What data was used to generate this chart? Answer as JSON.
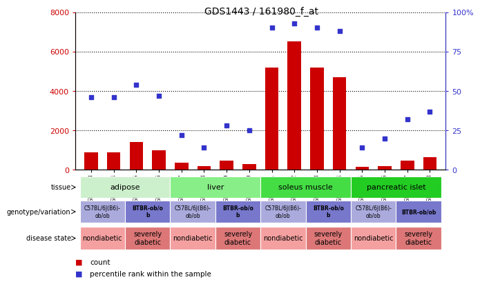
{
  "title": "GDS1443 / 161980_f_at",
  "samples": [
    "GSM63273",
    "GSM63274",
    "GSM63275",
    "GSM63276",
    "GSM63277",
    "GSM63278",
    "GSM63279",
    "GSM63280",
    "GSM63281",
    "GSM63282",
    "GSM63283",
    "GSM63284",
    "GSM63285",
    "GSM63286",
    "GSM63287",
    "GSM63288"
  ],
  "counts": [
    900,
    900,
    1400,
    1000,
    350,
    200,
    450,
    300,
    5200,
    6500,
    5200,
    4700,
    150,
    200,
    450,
    650
  ],
  "percentiles": [
    46,
    46,
    54,
    47,
    22,
    14,
    28,
    25,
    90,
    93,
    90,
    88,
    14,
    20,
    32,
    37
  ],
  "ylim_left": [
    0,
    8000
  ],
  "ylim_right": [
    0,
    100
  ],
  "yticks_left": [
    0,
    2000,
    4000,
    6000,
    8000
  ],
  "yticks_right": [
    0,
    25,
    50,
    75,
    100
  ],
  "bar_color": "#cc0000",
  "scatter_color": "#3333cc",
  "tissue_groups": [
    {
      "label": "adipose",
      "start": 0,
      "end": 4,
      "color": "#ccf0cc"
    },
    {
      "label": "liver",
      "start": 4,
      "end": 8,
      "color": "#88ee88"
    },
    {
      "label": "soleus muscle",
      "start": 8,
      "end": 12,
      "color": "#44dd44"
    },
    {
      "label": "pancreatic islet",
      "start": 12,
      "end": 16,
      "color": "#22cc22"
    }
  ],
  "genotype_groups": [
    {
      "label": "C57BL/6J(B6)-\nob/ob",
      "start": 0,
      "end": 2,
      "color": "#aaaadd"
    },
    {
      "label": "BTBR-ob/o\nb",
      "start": 2,
      "end": 4,
      "color": "#7777cc"
    },
    {
      "label": "C57BL/6J(B6)-\nob/ob",
      "start": 4,
      "end": 6,
      "color": "#aaaadd"
    },
    {
      "label": "BTBR-ob/o\nb",
      "start": 6,
      "end": 8,
      "color": "#7777cc"
    },
    {
      "label": "C57BL/6J(B6)-\nob/ob",
      "start": 8,
      "end": 10,
      "color": "#aaaadd"
    },
    {
      "label": "BTBR-ob/o\nb",
      "start": 10,
      "end": 12,
      "color": "#7777cc"
    },
    {
      "label": "C57BL/6J(B6)-\nob/ob",
      "start": 12,
      "end": 14,
      "color": "#aaaadd"
    },
    {
      "label": "BTBR-ob/ob",
      "start": 14,
      "end": 16,
      "color": "#7777cc"
    }
  ],
  "disease_groups": [
    {
      "label": "nondiabetic",
      "start": 0,
      "end": 2,
      "color": "#f5a0a0"
    },
    {
      "label": "severely\ndiabetic",
      "start": 2,
      "end": 4,
      "color": "#dd7777"
    },
    {
      "label": "nondiabetic",
      "start": 4,
      "end": 6,
      "color": "#f5a0a0"
    },
    {
      "label": "severely\ndiabetic",
      "start": 6,
      "end": 8,
      "color": "#dd7777"
    },
    {
      "label": "nondiabetic",
      "start": 8,
      "end": 10,
      "color": "#f5a0a0"
    },
    {
      "label": "severely\ndiabetic",
      "start": 10,
      "end": 12,
      "color": "#dd7777"
    },
    {
      "label": "nondiabetic",
      "start": 12,
      "end": 14,
      "color": "#f5a0a0"
    },
    {
      "label": "severely\ndiabetic",
      "start": 14,
      "end": 16,
      "color": "#dd7777"
    }
  ],
  "bg_color": "#ffffff",
  "row_labels": [
    "tissue",
    "genotype/variation",
    "disease state"
  ],
  "legend_items": [
    {
      "color": "#cc0000",
      "label": "count"
    },
    {
      "color": "#3333cc",
      "label": "percentile rank within the sample"
    }
  ]
}
